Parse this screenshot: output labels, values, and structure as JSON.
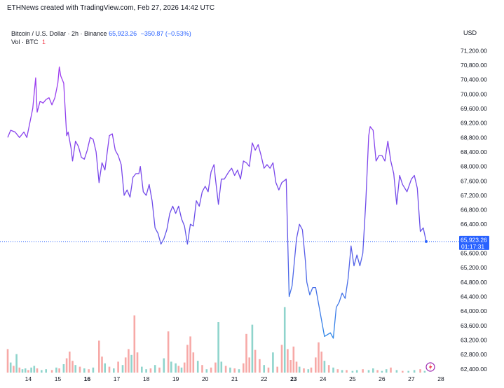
{
  "header": {
    "credit": "ETHNews created with TradingView.com, Feb 27, 2026 14:42 UTC",
    "symbol": "Bitcoin / U.S. Dollar · 2h · Binance",
    "last_price": "65,923.26",
    "change": "−350.87 (−0.53%)",
    "volume_label": "Vol · BTC",
    "volume_value": "1",
    "currency": "USD"
  },
  "price_badge": {
    "price": "65,923.26",
    "countdown": "01:17:31",
    "color": "#2962ff"
  },
  "chart_data": {
    "type": "line",
    "series": [
      {
        "color": "#7b3fe4",
        "points": [
          [
            13.3,
            68800
          ],
          [
            13.4,
            69000
          ],
          [
            13.55,
            68950
          ],
          [
            13.7,
            68800
          ],
          [
            13.85,
            68950
          ],
          [
            13.95,
            68800
          ],
          [
            14.05,
            69200
          ],
          [
            14.15,
            69600
          ],
          [
            14.25,
            70450
          ],
          [
            14.3,
            69500
          ],
          [
            14.4,
            69800
          ],
          [
            14.5,
            69750
          ],
          [
            14.6,
            69850
          ],
          [
            14.7,
            69900
          ],
          [
            14.8,
            69700
          ],
          [
            14.9,
            69900
          ],
          [
            15.0,
            70300
          ],
          [
            15.05,
            70750
          ],
          [
            15.1,
            70500
          ],
          [
            15.2,
            70300
          ],
          [
            15.3,
            68850
          ],
          [
            15.35,
            68950
          ],
          [
            15.45,
            68500
          ],
          [
            15.5,
            68150
          ],
          [
            15.6,
            68700
          ],
          [
            15.7,
            68550
          ],
          [
            15.8,
            68250
          ],
          [
            15.9,
            68200
          ],
          [
            16.0,
            68450
          ],
          [
            16.1,
            68800
          ],
          [
            16.2,
            68750
          ],
          [
            16.3,
            68400
          ],
          [
            16.4,
            67550
          ],
          [
            16.5,
            68100
          ],
          [
            16.6,
            67900
          ],
          [
            16.75,
            68850
          ],
          [
            16.85,
            68900
          ],
          [
            16.95,
            68450
          ],
          [
            17.05,
            68300
          ],
          [
            17.15,
            68050
          ],
          [
            17.25,
            67200
          ],
          [
            17.35,
            67350
          ],
          [
            17.45,
            67150
          ],
          [
            17.55,
            67700
          ],
          [
            17.65,
            67800
          ],
          [
            17.75,
            67800
          ],
          [
            17.8,
            68000
          ],
          [
            17.9,
            67300
          ],
          [
            18.0,
            67200
          ],
          [
            18.1,
            67500
          ],
          [
            18.2,
            67050
          ],
          [
            18.3,
            66300
          ],
          [
            18.4,
            66150
          ],
          [
            18.5,
            65850
          ],
          [
            18.6,
            66000
          ],
          [
            18.7,
            66250
          ],
          [
            18.8,
            66700
          ],
          [
            18.9,
            66900
          ],
          [
            19.0,
            66700
          ],
          [
            19.1,
            66900
          ],
          [
            19.2,
            66550
          ],
          [
            19.3,
            66350
          ],
          [
            19.4,
            65850
          ],
          [
            19.5,
            66400
          ],
          [
            19.6,
            66350
          ],
          [
            19.7,
            67050
          ],
          [
            19.8,
            66900
          ],
          [
            19.9,
            67300
          ],
          [
            20.0,
            67450
          ],
          [
            20.1,
            67300
          ],
          [
            20.2,
            67850
          ],
          [
            20.3,
            68050
          ],
          [
            20.35,
            67650
          ],
          [
            20.45,
            66950
          ],
          [
            20.55,
            67650
          ],
          [
            20.65,
            67650
          ],
          [
            20.8,
            67850
          ],
          [
            20.9,
            67950
          ],
          [
            21.0,
            67750
          ],
          [
            21.1,
            67900
          ],
          [
            21.2,
            67650
          ],
          [
            21.3,
            68150
          ],
          [
            21.4,
            68100
          ],
          [
            21.5,
            68000
          ],
          [
            21.6,
            68650
          ],
          [
            21.7,
            68450
          ],
          [
            21.8,
            68600
          ],
          [
            21.9,
            68300
          ],
          [
            22.0,
            67950
          ],
          [
            22.1,
            68050
          ],
          [
            22.2,
            67950
          ],
          [
            22.3,
            68100
          ],
          [
            22.4,
            67550
          ],
          [
            22.5,
            67350
          ],
          [
            22.6,
            67550
          ],
          [
            22.75,
            67650
          ],
          [
            22.85,
            64400
          ],
          [
            22.95,
            64700
          ],
          [
            23.1,
            66000
          ],
          [
            23.2,
            66400
          ],
          [
            23.3,
            66250
          ],
          [
            23.4,
            65400
          ],
          [
            23.45,
            64800
          ],
          [
            23.55,
            64450
          ],
          [
            23.65,
            64650
          ],
          [
            23.75,
            64650
          ],
          [
            23.85,
            64200
          ],
          [
            23.95,
            63750
          ],
          [
            24.05,
            63300
          ],
          [
            24.15,
            63350
          ],
          [
            24.25,
            63400
          ],
          [
            24.35,
            63250
          ],
          [
            24.45,
            64100
          ],
          [
            24.55,
            64250
          ],
          [
            24.65,
            64500
          ],
          [
            24.75,
            64350
          ],
          [
            24.85,
            64900
          ],
          [
            24.95,
            65800
          ],
          [
            25.05,
            65250
          ],
          [
            25.15,
            65550
          ],
          [
            25.25,
            65250
          ],
          [
            25.35,
            65600
          ],
          [
            25.45,
            67000
          ],
          [
            25.55,
            68850
          ],
          [
            25.6,
            69100
          ],
          [
            25.7,
            69000
          ],
          [
            25.8,
            68150
          ],
          [
            25.9,
            68300
          ],
          [
            26.0,
            68300
          ],
          [
            26.1,
            68150
          ],
          [
            26.2,
            68700
          ],
          [
            26.3,
            68150
          ],
          [
            26.4,
            67800
          ],
          [
            26.5,
            66950
          ],
          [
            26.6,
            67750
          ],
          [
            26.7,
            67500
          ],
          [
            26.85,
            67300
          ],
          [
            27.0,
            67650
          ],
          [
            27.1,
            67750
          ],
          [
            27.2,
            67400
          ],
          [
            27.3,
            66200
          ],
          [
            27.4,
            66300
          ],
          [
            27.5,
            65923
          ]
        ]
      }
    ],
    "volume": [
      {
        "t": 13.3,
        "h": 0.28,
        "c": "#f7a9a7"
      },
      {
        "t": 13.4,
        "h": 0.12,
        "c": "#8fd4cc"
      },
      {
        "t": 13.5,
        "h": 0.08,
        "c": "#f7a9a7"
      },
      {
        "t": 13.6,
        "h": 0.22,
        "c": "#8fd4cc"
      },
      {
        "t": 13.7,
        "h": 0.06,
        "c": "#f7a9a7"
      },
      {
        "t": 13.8,
        "h": 0.04,
        "c": "#8fd4cc"
      },
      {
        "t": 13.9,
        "h": 0.05,
        "c": "#8fd4cc"
      },
      {
        "t": 14.0,
        "h": 0.03,
        "c": "#f7a9a7"
      },
      {
        "t": 14.1,
        "h": 0.06,
        "c": "#8fd4cc"
      },
      {
        "t": 14.2,
        "h": 0.08,
        "c": "#8fd4cc"
      },
      {
        "t": 14.3,
        "h": 0.05,
        "c": "#f7a9a7"
      },
      {
        "t": 14.45,
        "h": 0.03,
        "c": "#8fd4cc"
      },
      {
        "t": 14.6,
        "h": 0.04,
        "c": "#8fd4cc"
      },
      {
        "t": 14.8,
        "h": 0.03,
        "c": "#f7a9a7"
      },
      {
        "t": 14.95,
        "h": 0.06,
        "c": "#8fd4cc"
      },
      {
        "t": 15.05,
        "h": 0.05,
        "c": "#f7a9a7"
      },
      {
        "t": 15.2,
        "h": 0.1,
        "c": "#8fd4cc"
      },
      {
        "t": 15.3,
        "h": 0.17,
        "c": "#f7a9a7"
      },
      {
        "t": 15.4,
        "h": 0.25,
        "c": "#f7a9a7"
      },
      {
        "t": 15.5,
        "h": 0.14,
        "c": "#f7a9a7"
      },
      {
        "t": 15.6,
        "h": 0.09,
        "c": "#8fd4cc"
      },
      {
        "t": 15.75,
        "h": 0.07,
        "c": "#f7a9a7"
      },
      {
        "t": 15.9,
        "h": 0.05,
        "c": "#8fd4cc"
      },
      {
        "t": 16.05,
        "h": 0.04,
        "c": "#f7a9a7"
      },
      {
        "t": 16.2,
        "h": 0.06,
        "c": "#8fd4cc"
      },
      {
        "t": 16.4,
        "h": 0.38,
        "c": "#f7a9a7"
      },
      {
        "t": 16.5,
        "h": 0.19,
        "c": "#f7a9a7"
      },
      {
        "t": 16.6,
        "h": 0.11,
        "c": "#8fd4cc"
      },
      {
        "t": 16.75,
        "h": 0.07,
        "c": "#f7a9a7"
      },
      {
        "t": 16.9,
        "h": 0.05,
        "c": "#8fd4cc"
      },
      {
        "t": 17.05,
        "h": 0.13,
        "c": "#f7a9a7"
      },
      {
        "t": 17.2,
        "h": 0.09,
        "c": "#8fd4cc"
      },
      {
        "t": 17.3,
        "h": 0.18,
        "c": "#f7a9a7"
      },
      {
        "t": 17.4,
        "h": 0.28,
        "c": "#f7a9a7"
      },
      {
        "t": 17.5,
        "h": 0.21,
        "c": "#8fd4cc"
      },
      {
        "t": 17.6,
        "h": 0.68,
        "c": "#f7a9a7"
      },
      {
        "t": 17.7,
        "h": 0.24,
        "c": "#f7a9a7"
      },
      {
        "t": 17.85,
        "h": 0.07,
        "c": "#8fd4cc"
      },
      {
        "t": 18.0,
        "h": 0.04,
        "c": "#8fd4cc"
      },
      {
        "t": 18.15,
        "h": 0.05,
        "c": "#f7a9a7"
      },
      {
        "t": 18.3,
        "h": 0.09,
        "c": "#8fd4cc"
      },
      {
        "t": 18.45,
        "h": 0.06,
        "c": "#f7a9a7"
      },
      {
        "t": 18.6,
        "h": 0.17,
        "c": "#8fd4cc"
      },
      {
        "t": 18.75,
        "h": 0.49,
        "c": "#f7a9a7"
      },
      {
        "t": 18.85,
        "h": 0.13,
        "c": "#8fd4cc"
      },
      {
        "t": 19.0,
        "h": 0.11,
        "c": "#8fd4cc"
      },
      {
        "t": 19.1,
        "h": 0.08,
        "c": "#f7a9a7"
      },
      {
        "t": 19.2,
        "h": 0.06,
        "c": "#8fd4cc"
      },
      {
        "t": 19.3,
        "h": 0.12,
        "c": "#f7a9a7"
      },
      {
        "t": 19.4,
        "h": 0.33,
        "c": "#f7a9a7"
      },
      {
        "t": 19.5,
        "h": 0.43,
        "c": "#f7a9a7"
      },
      {
        "t": 19.6,
        "h": 0.24,
        "c": "#f7a9a7"
      },
      {
        "t": 19.75,
        "h": 0.14,
        "c": "#8fd4cc"
      },
      {
        "t": 19.9,
        "h": 0.09,
        "c": "#f7a9a7"
      },
      {
        "t": 20.05,
        "h": 0.04,
        "c": "#8fd4cc"
      },
      {
        "t": 20.2,
        "h": 0.06,
        "c": "#f7a9a7"
      },
      {
        "t": 20.35,
        "h": 0.12,
        "c": "#f7a9a7"
      },
      {
        "t": 20.45,
        "h": 0.6,
        "c": "#8fd4cc"
      },
      {
        "t": 20.55,
        "h": 0.13,
        "c": "#8fd4cc"
      },
      {
        "t": 20.7,
        "h": 0.08,
        "c": "#f7a9a7"
      },
      {
        "t": 20.85,
        "h": 0.06,
        "c": "#8fd4cc"
      },
      {
        "t": 21.0,
        "h": 0.05,
        "c": "#f7a9a7"
      },
      {
        "t": 21.15,
        "h": 0.04,
        "c": "#8fd4cc"
      },
      {
        "t": 21.3,
        "h": 0.11,
        "c": "#f7a9a7"
      },
      {
        "t": 21.4,
        "h": 0.46,
        "c": "#f7a9a7"
      },
      {
        "t": 21.5,
        "h": 0.18,
        "c": "#f7a9a7"
      },
      {
        "t": 21.6,
        "h": 0.57,
        "c": "#8fd4cc"
      },
      {
        "t": 21.7,
        "h": 0.27,
        "c": "#f7a9a7"
      },
      {
        "t": 21.85,
        "h": 0.16,
        "c": "#f7a9a7"
      },
      {
        "t": 22.0,
        "h": 0.09,
        "c": "#8fd4cc"
      },
      {
        "t": 22.15,
        "h": 0.06,
        "c": "#f7a9a7"
      },
      {
        "t": 22.3,
        "h": 0.24,
        "c": "#8fd4cc"
      },
      {
        "t": 22.45,
        "h": 0.07,
        "c": "#f7a9a7"
      },
      {
        "t": 22.6,
        "h": 0.33,
        "c": "#f7a9a7"
      },
      {
        "t": 22.7,
        "h": 0.78,
        "c": "#8fd4cc"
      },
      {
        "t": 22.8,
        "h": 0.28,
        "c": "#f7a9a7"
      },
      {
        "t": 22.9,
        "h": 0.15,
        "c": "#f7a9a7"
      },
      {
        "t": 23.0,
        "h": 0.31,
        "c": "#f7a9a7"
      },
      {
        "t": 23.1,
        "h": 0.13,
        "c": "#f7a9a7"
      },
      {
        "t": 23.2,
        "h": 0.07,
        "c": "#8fd4cc"
      },
      {
        "t": 23.35,
        "h": 0.05,
        "c": "#f7a9a7"
      },
      {
        "t": 23.5,
        "h": 0.04,
        "c": "#8fd4cc"
      },
      {
        "t": 23.6,
        "h": 0.06,
        "c": "#f7a9a7"
      },
      {
        "t": 23.75,
        "h": 0.18,
        "c": "#f7a9a7"
      },
      {
        "t": 23.85,
        "h": 0.36,
        "c": "#f7a9a7"
      },
      {
        "t": 23.95,
        "h": 0.25,
        "c": "#f7a9a7"
      },
      {
        "t": 24.05,
        "h": 0.14,
        "c": "#8fd4cc"
      },
      {
        "t": 24.2,
        "h": 0.09,
        "c": "#f7a9a7"
      },
      {
        "t": 24.35,
        "h": 0.06,
        "c": "#8fd4cc"
      },
      {
        "t": 24.5,
        "h": 0.04,
        "c": "#f7a9a7"
      },
      {
        "t": 24.65,
        "h": 0.03,
        "c": "#8fd4cc"
      },
      {
        "t": 24.8,
        "h": 0.03,
        "c": "#f7a9a7"
      },
      {
        "t": 25.0,
        "h": 0.02,
        "c": "#8fd4cc"
      },
      {
        "t": 25.15,
        "h": 0.03,
        "c": "#8fd4cc"
      },
      {
        "t": 25.35,
        "h": 0.04,
        "c": "#f7a9a7"
      },
      {
        "t": 25.55,
        "h": 0.03,
        "c": "#8fd4cc"
      },
      {
        "t": 25.7,
        "h": 0.05,
        "c": "#8fd4cc"
      },
      {
        "t": 25.85,
        "h": 0.03,
        "c": "#f7a9a7"
      },
      {
        "t": 26.0,
        "h": 0.02,
        "c": "#8fd4cc"
      },
      {
        "t": 26.15,
        "h": 0.04,
        "c": "#8fd4cc"
      },
      {
        "t": 26.3,
        "h": 0.06,
        "c": "#f7a9a7"
      },
      {
        "t": 26.5,
        "h": 0.03,
        "c": "#8fd4cc"
      },
      {
        "t": 26.7,
        "h": 0.02,
        "c": "#f7a9a7"
      },
      {
        "t": 26.9,
        "h": 0.02,
        "c": "#8fd4cc"
      },
      {
        "t": 27.1,
        "h": 0.03,
        "c": "#8fd4cc"
      },
      {
        "t": 27.3,
        "h": 0.04,
        "c": "#f7a9a7"
      },
      {
        "t": 27.45,
        "h": 0.02,
        "c": "#8fd4cc"
      }
    ],
    "y_ticks": [
      "71,200.00",
      "70,800.00",
      "70,400.00",
      "70,000.00",
      "69,600.00",
      "69,200.00",
      "68,800.00",
      "68,400.00",
      "68,000.00",
      "67,600.00",
      "67,200.00",
      "66,800.00",
      "66,400.00",
      "65,600.00",
      "65,200.00",
      "64,800.00",
      "64,400.00",
      "64,000.00",
      "63,600.00",
      "63,200.00",
      "62,800.00",
      "62,400.00"
    ],
    "y_tick_values": [
      71200,
      70800,
      70400,
      70000,
      69600,
      69200,
      68800,
      68400,
      68000,
      67600,
      67200,
      66800,
      66400,
      65600,
      65200,
      64800,
      64400,
      64000,
      63600,
      63200,
      62800,
      62400
    ],
    "ylim": [
      62300,
      71400
    ],
    "x_ticks": [
      {
        "label": "14",
        "t": 14.0,
        "bold": false
      },
      {
        "label": "15",
        "t": 15.0,
        "bold": false
      },
      {
        "label": "16",
        "t": 16.0,
        "bold": true
      },
      {
        "label": "17",
        "t": 17.0,
        "bold": false
      },
      {
        "label": "18",
        "t": 18.0,
        "bold": false
      },
      {
        "label": "19",
        "t": 19.0,
        "bold": false
      },
      {
        "label": "20",
        "t": 20.0,
        "bold": false
      },
      {
        "label": "21",
        "t": 21.0,
        "bold": false
      },
      {
        "label": "22",
        "t": 22.0,
        "bold": false
      },
      {
        "label": "23",
        "t": 23.0,
        "bold": true
      },
      {
        "label": "24",
        "t": 24.0,
        "bold": false
      },
      {
        "label": "25",
        "t": 25.0,
        "bold": false
      },
      {
        "label": "26",
        "t": 26.0,
        "bold": false
      },
      {
        "label": "27",
        "t": 27.0,
        "bold": false
      },
      {
        "label": "28",
        "t": 28.0,
        "bold": false
      }
    ],
    "xlim": [
      13.3,
      28.5
    ],
    "last_value": 65923,
    "colors": {
      "line_start": "#9d3ff0",
      "line_end": "#2962ff",
      "up_volume": "#8fd4cc",
      "down_volume": "#f7a9a7",
      "price_line": "#2962ff"
    }
  }
}
